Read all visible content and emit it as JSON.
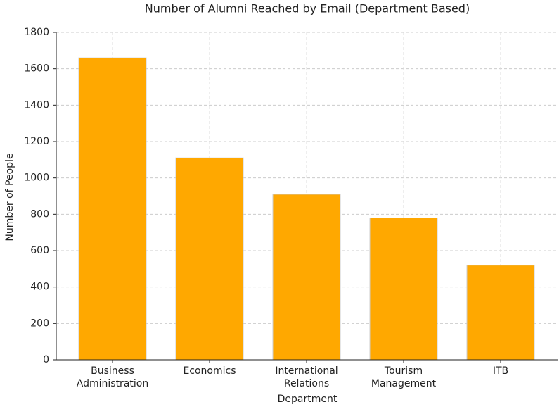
{
  "chart_data": {
    "type": "bar",
    "title": "Number of Alumni Reached by Email (Department Based)",
    "x_label": "Department",
    "y_label": "Number of People",
    "categories": [
      "Business Administration",
      "Economics",
      "International Relations",
      "Tourism Management",
      "ITB"
    ],
    "values": [
      1660,
      1110,
      910,
      780,
      520
    ],
    "color": "#ffa800",
    "ylim": [
      0,
      1800
    ],
    "yticks": [
      0,
      200,
      400,
      600,
      800,
      1000,
      1200,
      1400,
      1600,
      1800
    ],
    "grid": true
  }
}
